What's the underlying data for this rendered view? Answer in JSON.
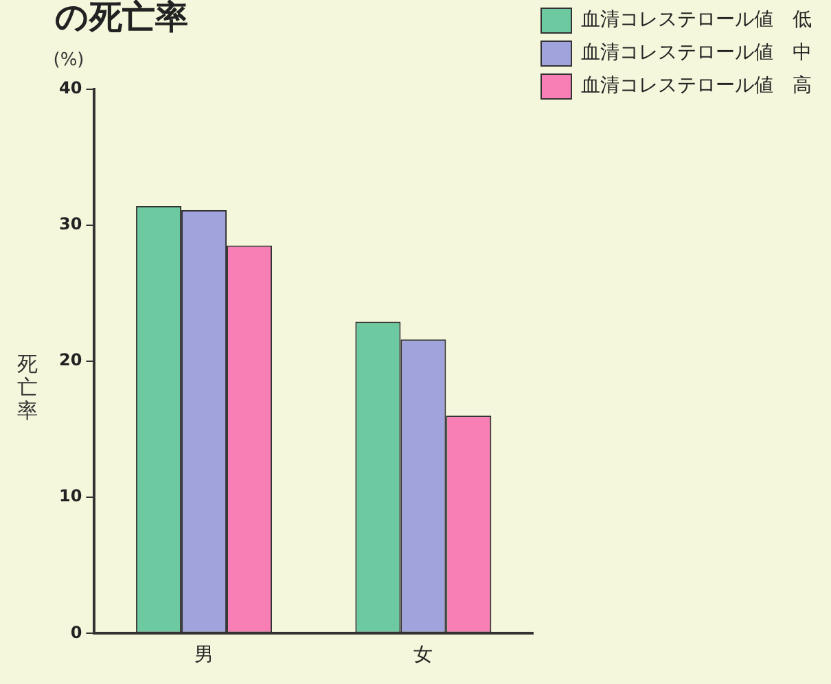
{
  "chart_data": {
    "type": "bar",
    "title": "の死亡率",
    "ylabel": "死亡率",
    "annotations": [
      "(%)"
    ],
    "categories": [
      "男",
      "女"
    ],
    "series": [
      {
        "name": "血清コレステロール値　低",
        "color": "#6cc9a0",
        "values": [
          31.4,
          22.9
        ]
      },
      {
        "name": "血清コレステロール値　中",
        "color": "#a0a3dc",
        "values": [
          31.1,
          21.6
        ]
      },
      {
        "name": "血清コレステロール値　高",
        "color": "#f77fb5",
        "values": [
          28.5,
          16.0
        ]
      }
    ],
    "ylim": [
      0,
      40
    ],
    "yticks": [
      0,
      10,
      20,
      30,
      40
    ],
    "grid": false,
    "legend": "top right"
  }
}
